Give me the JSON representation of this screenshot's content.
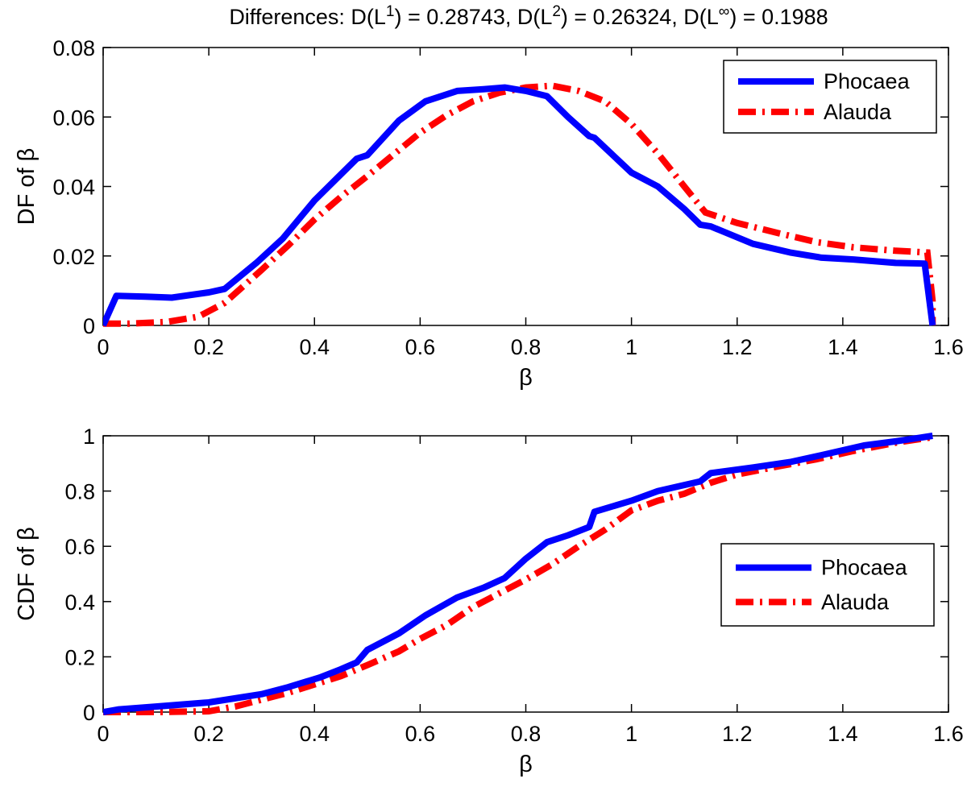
{
  "chart_data": [
    {
      "type": "line",
      "title": "Differences: D(L",
      "title_parts": {
        "prefix": "Differences: D(L",
        "sup1": "1",
        "mid1": ") = 0.28743, D(L",
        "sup2": "2",
        "mid2": ") = 0.26324, D(L",
        "sup3": "∞",
        "end": ") = 0.1988"
      },
      "xlabel": "β",
      "ylabel": "DF of β",
      "xlim": [
        0,
        1.6
      ],
      "ylim": [
        0,
        0.08
      ],
      "xticks": [
        "0",
        "0.2",
        "0.4",
        "0.6",
        "0.8",
        "1",
        "1.2",
        "1.4",
        "1.6"
      ],
      "yticks": [
        "0",
        "0.02",
        "0.04",
        "0.06",
        "0.08"
      ],
      "legend_position": "top-right",
      "series": [
        {
          "name": "Phocaea",
          "color": "#0000ff",
          "style": "solid",
          "x": [
            0,
            0.025,
            0.08,
            0.13,
            0.2,
            0.23,
            0.29,
            0.34,
            0.4,
            0.44,
            0.48,
            0.5,
            0.56,
            0.61,
            0.67,
            0.72,
            0.76,
            0.8,
            0.84,
            0.88,
            0.92,
            0.93,
            1.0,
            1.05,
            1.1,
            1.13,
            1.15,
            1.23,
            1.3,
            1.36,
            1.42,
            1.5,
            1.555,
            1.57
          ],
          "y": [
            0,
            0.0085,
            0.0083,
            0.008,
            0.0095,
            0.0105,
            0.018,
            0.025,
            0.036,
            0.042,
            0.048,
            0.049,
            0.059,
            0.0645,
            0.0675,
            0.068,
            0.0685,
            0.0675,
            0.066,
            0.06,
            0.0545,
            0.054,
            0.044,
            0.04,
            0.0335,
            0.029,
            0.0285,
            0.0235,
            0.021,
            0.0195,
            0.019,
            0.018,
            0.0178,
            0
          ]
        },
        {
          "name": "Alauda",
          "color": "#ff0000",
          "style": "dashdot",
          "x": [
            0,
            0.05,
            0.12,
            0.18,
            0.23,
            0.3,
            0.35,
            0.4,
            0.45,
            0.5,
            0.56,
            0.6,
            0.65,
            0.7,
            0.75,
            0.8,
            0.85,
            0.9,
            0.95,
            1.0,
            1.05,
            1.1,
            1.14,
            1.2,
            1.28,
            1.35,
            1.42,
            1.5,
            1.56,
            1.57,
            1.57
          ],
          "y": [
            0.0005,
            0.0005,
            0.001,
            0.0025,
            0.0065,
            0.016,
            0.023,
            0.0305,
            0.037,
            0.043,
            0.0505,
            0.0555,
            0.0605,
            0.0645,
            0.067,
            0.0685,
            0.069,
            0.0675,
            0.0645,
            0.058,
            0.0495,
            0.04,
            0.0325,
            0.0295,
            0.0265,
            0.024,
            0.0225,
            0.0215,
            0.021,
            0.007,
            0
          ]
        }
      ]
    },
    {
      "type": "line",
      "title": "",
      "xlabel": "β",
      "ylabel": "CDF of β",
      "xlim": [
        0,
        1.6
      ],
      "ylim": [
        0,
        1
      ],
      "xticks": [
        "0",
        "0.2",
        "0.4",
        "0.6",
        "0.8",
        "1",
        "1.2",
        "1.4",
        "1.6"
      ],
      "yticks": [
        "0",
        "0.2",
        "0.4",
        "0.6",
        "0.8",
        "1"
      ],
      "legend_position": "center-right",
      "series": [
        {
          "name": "Phocaea",
          "color": "#0000ff",
          "style": "solid",
          "x": [
            0,
            0.03,
            0.1,
            0.2,
            0.3,
            0.35,
            0.41,
            0.45,
            0.48,
            0.5,
            0.56,
            0.61,
            0.67,
            0.72,
            0.76,
            0.8,
            0.84,
            0.88,
            0.92,
            0.93,
            1.0,
            1.05,
            1.13,
            1.15,
            1.23,
            1.3,
            1.36,
            1.44,
            1.5,
            1.57
          ],
          "y": [
            0,
            0.01,
            0.02,
            0.035,
            0.065,
            0.09,
            0.125,
            0.155,
            0.18,
            0.225,
            0.285,
            0.35,
            0.415,
            0.45,
            0.485,
            0.555,
            0.615,
            0.64,
            0.67,
            0.725,
            0.765,
            0.8,
            0.835,
            0.865,
            0.885,
            0.905,
            0.93,
            0.965,
            0.98,
            1.0
          ]
        },
        {
          "name": "Alauda",
          "color": "#ff0000",
          "style": "dashdot",
          "x": [
            0,
            0.05,
            0.12,
            0.2,
            0.25,
            0.3,
            0.35,
            0.4,
            0.45,
            0.5,
            0.56,
            0.6,
            0.65,
            0.7,
            0.75,
            0.8,
            0.85,
            0.9,
            0.95,
            1.0,
            1.05,
            1.1,
            1.15,
            1.2,
            1.28,
            1.35,
            1.42,
            1.5,
            1.57
          ],
          "y": [
            0,
            0,
            0.0005,
            0.003,
            0.02,
            0.045,
            0.07,
            0.1,
            0.13,
            0.17,
            0.22,
            0.265,
            0.315,
            0.38,
            0.43,
            0.48,
            0.535,
            0.6,
            0.66,
            0.73,
            0.765,
            0.79,
            0.83,
            0.86,
            0.89,
            0.915,
            0.945,
            0.975,
            0.995
          ]
        }
      ]
    }
  ]
}
